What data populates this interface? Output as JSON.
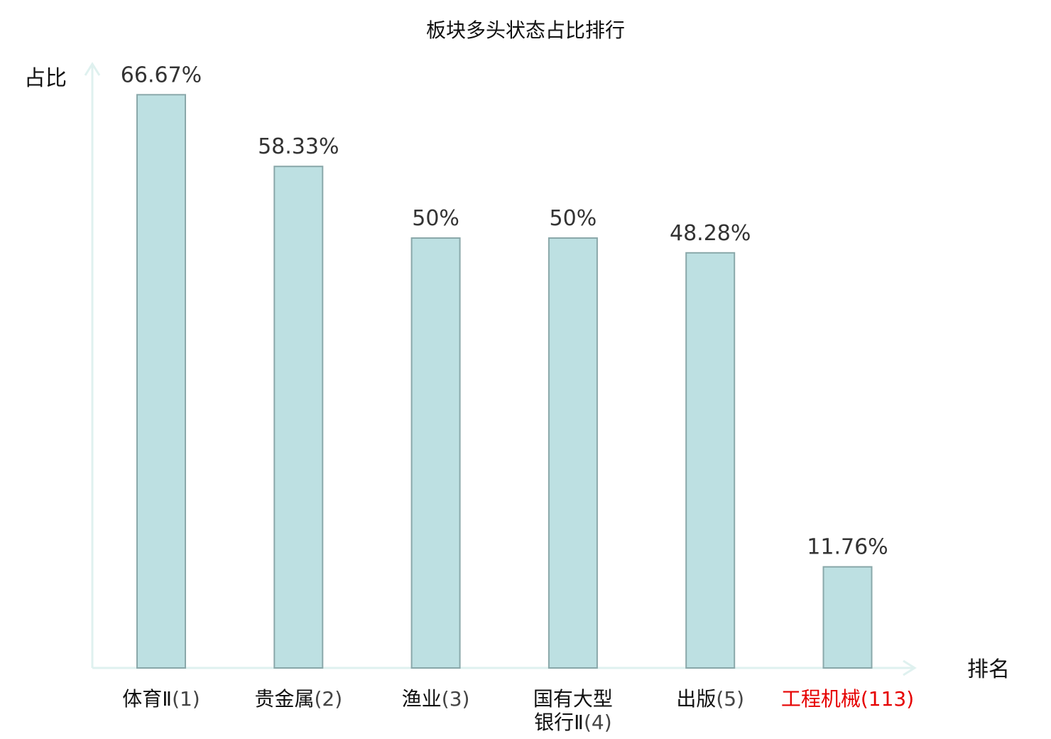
{
  "chart_data": {
    "type": "bar",
    "title": "板块多头状态占比排行",
    "ylabel": "占比",
    "xlabel": "排名",
    "ylim": [
      0,
      70
    ],
    "grid": false,
    "categories": [
      {
        "name_lines": [
          "体育Ⅱ"
        ],
        "rank": "(1)",
        "highlight": false
      },
      {
        "name_lines": [
          "贵金属"
        ],
        "rank": "(2)",
        "highlight": false
      },
      {
        "name_lines": [
          "渔业"
        ],
        "rank": "(3)",
        "highlight": false
      },
      {
        "name_lines": [
          "国有大型",
          "银行Ⅱ"
        ],
        "rank": "(4)",
        "highlight": false
      },
      {
        "name_lines": [
          "出版"
        ],
        "rank": "(5)",
        "highlight": false
      },
      {
        "name_lines": [
          "工程机械"
        ],
        "rank": "(113)",
        "highlight": true
      }
    ],
    "values": [
      66.67,
      58.33,
      50,
      50,
      48.28,
      11.76
    ],
    "value_labels": [
      "66.67%",
      "58.33%",
      "50%",
      "50%",
      "48.28%",
      "11.76%"
    ]
  },
  "colors": {
    "bar_fill": "#bde0e2",
    "bar_stroke": "#8aa8aa",
    "axis": "#dff1ef",
    "text": "#111111",
    "value_text": "#333333",
    "highlight": "#e60000"
  }
}
